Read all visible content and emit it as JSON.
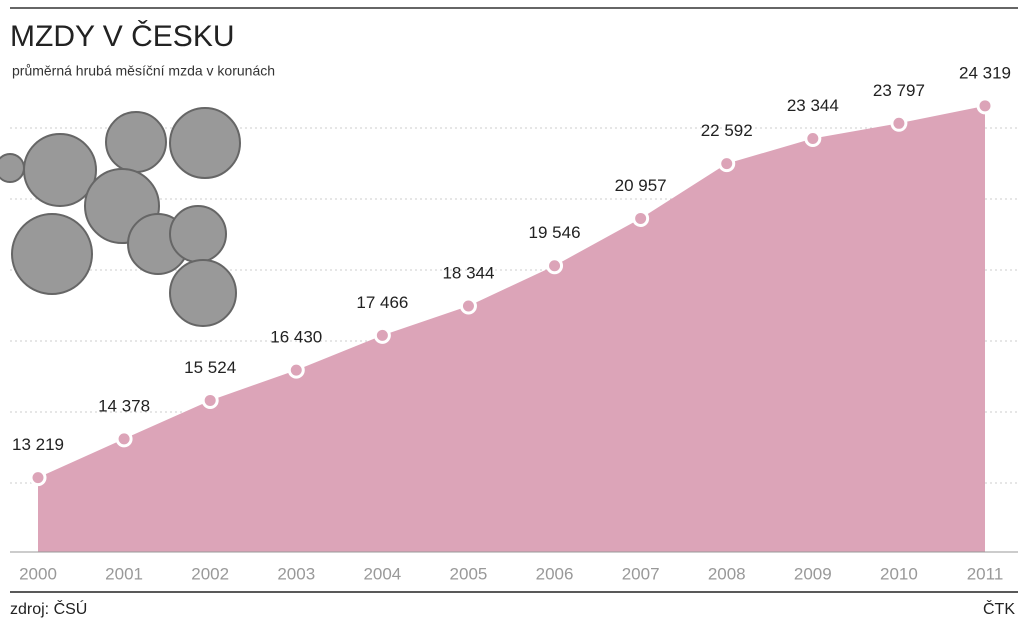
{
  "chart_data": {
    "type": "area",
    "title": "MZDY V ČESKU",
    "subtitle": "průměrná hrubá měsíční mzda v korunách",
    "categories": [
      "2000",
      "2001",
      "2002",
      "2003",
      "2004",
      "2005",
      "2006",
      "2007",
      "2008",
      "2009",
      "2010",
      "2011"
    ],
    "values": [
      13219,
      14378,
      15524,
      16430,
      17466,
      18344,
      19546,
      20957,
      22592,
      23344,
      23797,
      24319
    ],
    "value_labels": [
      "13 219",
      "14 378",
      "15 524",
      "16 430",
      "17 466",
      "18 344",
      "19 546",
      "20 957",
      "22 592",
      "23 344",
      "23 797",
      "24 319"
    ],
    "color": "#dca4b8",
    "ylim": [
      11000,
      25000
    ],
    "source": "zdroj: ČSÚ",
    "credit": "ČTK"
  }
}
